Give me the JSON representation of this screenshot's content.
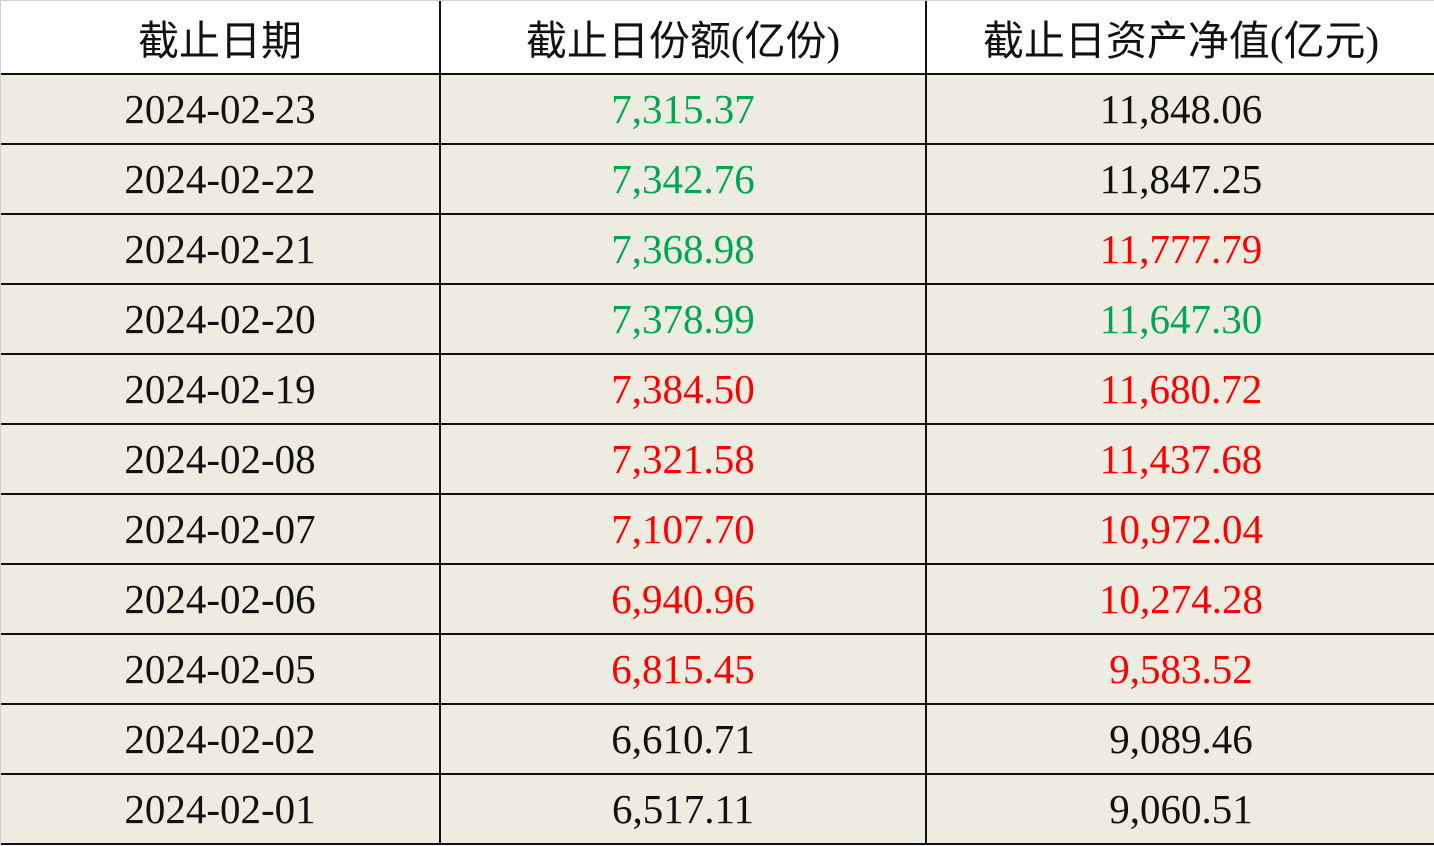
{
  "table": {
    "header": [
      "截止日期",
      "截止日份额(亿份)",
      "截止日资产净值(亿元)"
    ],
    "rows": [
      [
        "2024-02-23",
        "7,315.37",
        "11,848.06"
      ],
      [
        "2024-02-22",
        "7,342.76",
        "11,847.25"
      ],
      [
        "2024-02-21",
        "7,368.98",
        "11,777.79"
      ],
      [
        "2024-02-20",
        "7,378.99",
        "11,647.30"
      ],
      [
        "2024-02-19",
        "7,384.50",
        "11,680.72"
      ],
      [
        "2024-02-08",
        "7,321.58",
        "11,437.68"
      ],
      [
        "2024-02-07",
        "7,107.70",
        "10,972.04"
      ],
      [
        "2024-02-06",
        "6,940.96",
        "10,274.28"
      ],
      [
        "2024-02-05",
        "6,815.45",
        "9,583.52"
      ],
      [
        "2024-02-02",
        "6,610.71",
        "9,089.46"
      ],
      [
        "2024-02-01",
        "6,517.11",
        "9,060.51"
      ]
    ],
    "colors": [
      [
        "#111111",
        "#00a651",
        "#111111"
      ],
      [
        "#111111",
        "#00a651",
        "#111111"
      ],
      [
        "#111111",
        "#00a651",
        "#ff0000"
      ],
      [
        "#111111",
        "#00a651",
        "#00a651"
      ],
      [
        "#111111",
        "#ff0000",
        "#ff0000"
      ],
      [
        "#111111",
        "#ff0000",
        "#ff0000"
      ],
      [
        "#111111",
        "#ff0000",
        "#ff0000"
      ],
      [
        "#111111",
        "#ff0000",
        "#ff0000"
      ],
      [
        "#111111",
        "#ff0000",
        "#ff0000"
      ],
      [
        "#111111",
        "#111111",
        "#111111"
      ],
      [
        "#111111",
        "#111111",
        "#111111"
      ]
    ]
  }
}
